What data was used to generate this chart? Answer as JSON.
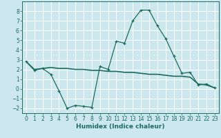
{
  "title": "",
  "xlabel": "Humidex (Indice chaleur)",
  "xlim": [
    -0.5,
    23.5
  ],
  "ylim": [
    -2.5,
    9.0
  ],
  "yticks": [
    -2,
    -1,
    0,
    1,
    2,
    3,
    4,
    5,
    6,
    7,
    8
  ],
  "xticks": [
    0,
    1,
    2,
    3,
    4,
    5,
    6,
    7,
    8,
    9,
    10,
    11,
    12,
    13,
    14,
    15,
    16,
    17,
    18,
    19,
    20,
    21,
    22,
    23
  ],
  "bg_color": "#cce8ee",
  "grid_color": "#ffffff",
  "line_color": "#1a6b5e",
  "line1_x": [
    0,
    1,
    2,
    3,
    4,
    5,
    6,
    7,
    8,
    9,
    10,
    11,
    12,
    13,
    14,
    15,
    16,
    17,
    18,
    19,
    20,
    21,
    22,
    23
  ],
  "line1_y": [
    2.8,
    1.9,
    2.1,
    1.5,
    -0.2,
    -2.0,
    -1.7,
    -1.8,
    -1.9,
    2.3,
    2.0,
    4.9,
    4.7,
    7.0,
    8.1,
    8.1,
    6.5,
    5.2,
    3.4,
    1.6,
    1.7,
    0.4,
    0.5,
    0.1
  ],
  "line2_x": [
    0,
    1,
    2,
    3,
    4,
    5,
    6,
    7,
    8,
    9,
    10,
    11,
    12,
    13,
    14,
    15,
    16,
    17,
    18,
    19,
    20,
    21,
    22,
    23
  ],
  "line2_y": [
    2.8,
    2.0,
    2.1,
    2.2,
    2.1,
    2.1,
    2.0,
    2.0,
    1.9,
    1.9,
    1.8,
    1.8,
    1.7,
    1.7,
    1.6,
    1.5,
    1.5,
    1.4,
    1.3,
    1.3,
    1.2,
    0.5,
    0.4,
    0.1
  ]
}
